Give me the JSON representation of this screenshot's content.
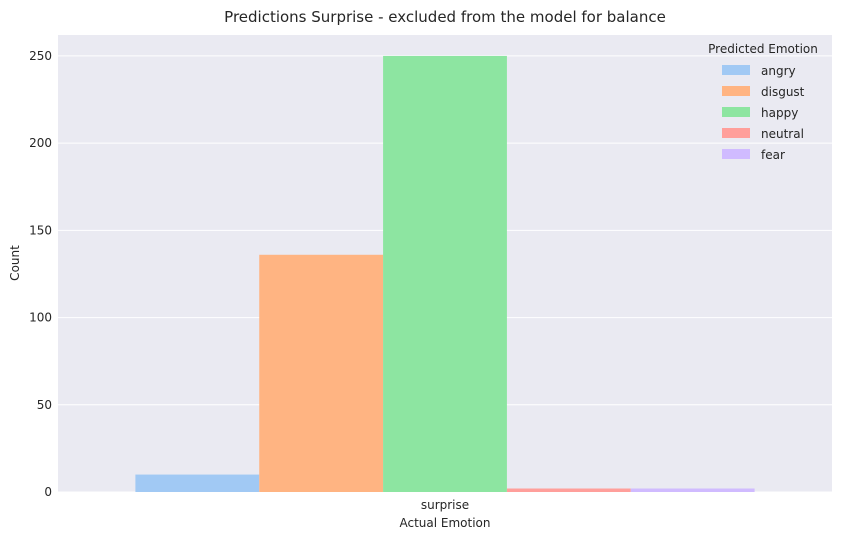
{
  "chart_data": {
    "type": "bar",
    "title": "Predictions Surprise - excluded from the model for balance",
    "xlabel": "Actual Emotion",
    "ylabel": "Count",
    "categories": [
      "surprise"
    ],
    "ylim": [
      0,
      262
    ],
    "yticks": [
      0,
      50,
      100,
      150,
      200,
      250
    ],
    "grid": true,
    "legend": {
      "title": "Predicted Emotion",
      "placement": "top-right"
    },
    "series": [
      {
        "name": "angry",
        "color": "#a1c9f4",
        "values": [
          10
        ]
      },
      {
        "name": "disgust",
        "color": "#ffb482",
        "values": [
          136
        ]
      },
      {
        "name": "happy",
        "color": "#8de5a1",
        "values": [
          250
        ]
      },
      {
        "name": "neutral",
        "color": "#ff9f9b",
        "values": [
          2
        ]
      },
      {
        "name": "fear",
        "color": "#d0bbff",
        "values": [
          2
        ]
      }
    ]
  }
}
